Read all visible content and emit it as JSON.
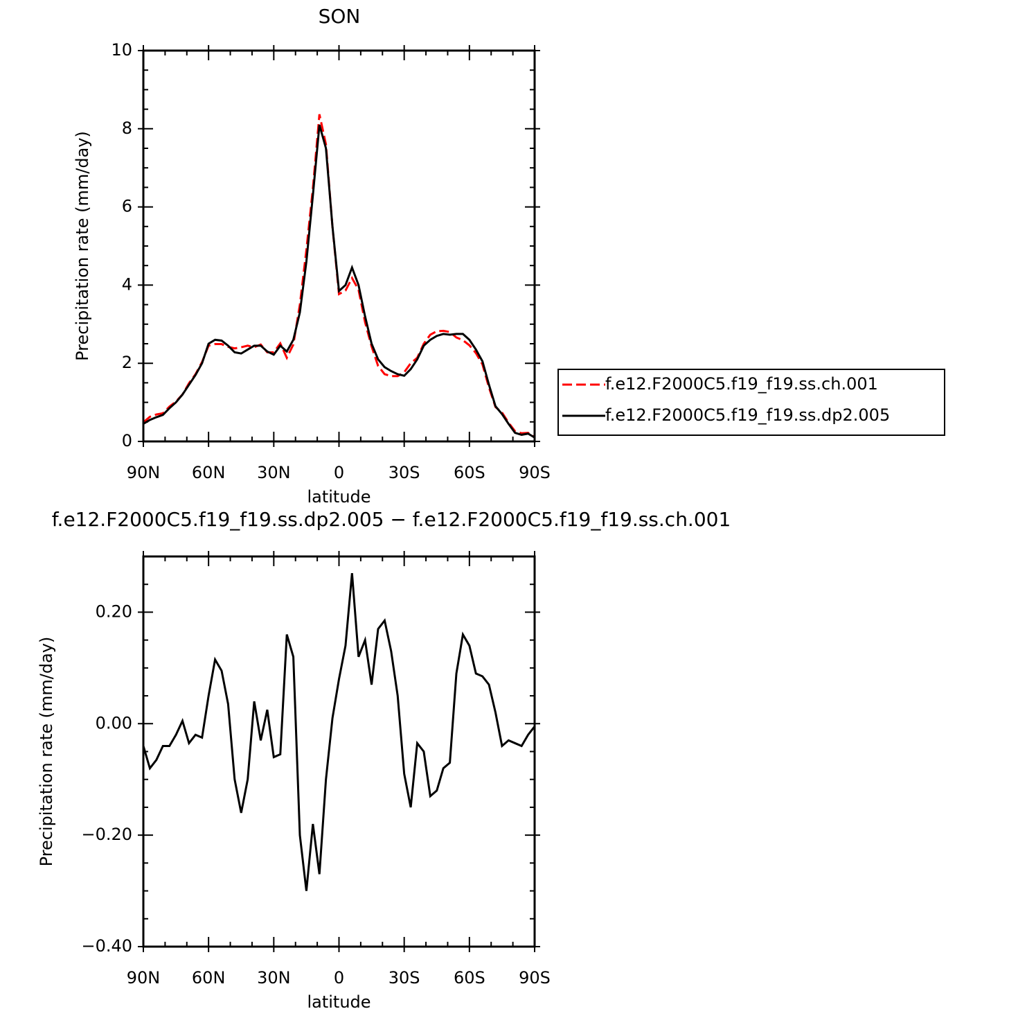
{
  "chart_data": [
    {
      "type": "line",
      "title": "SON",
      "xlabel": "latitude",
      "ylabel": "Precipitation rate (mm/day)",
      "x": [
        90,
        87,
        84,
        81,
        78,
        75,
        72,
        69,
        66,
        63,
        60,
        57,
        54,
        51,
        48,
        45,
        42,
        39,
        36,
        33,
        30,
        27,
        24,
        21,
        18,
        15,
        12,
        9,
        6,
        3,
        0,
        -3,
        -6,
        -9,
        -12,
        -15,
        -18,
        -21,
        -24,
        -27,
        -30,
        -33,
        -36,
        -39,
        -42,
        -45,
        -48,
        -51,
        -54,
        -57,
        -60,
        -63,
        -66,
        -69,
        -72,
        -75,
        -78,
        -81,
        -84,
        -87,
        -90
      ],
      "series": [
        {
          "name": "f.e12.F2000C5.f19_f19.ss.ch.001",
          "color": "#ff0000",
          "dash": true,
          "values": [
            0.49,
            0.63,
            0.69,
            0.72,
            0.89,
            1.02,
            1.2,
            1.49,
            1.72,
            2.03,
            2.45,
            2.49,
            2.49,
            2.42,
            2.38,
            2.41,
            2.45,
            2.41,
            2.48,
            2.28,
            2.28,
            2.51,
            2.14,
            2.48,
            3.5,
            4.9,
            6.48,
            8.37,
            7.6,
            5.49,
            3.77,
            3.86,
            4.18,
            3.88,
            3.05,
            2.43,
            1.93,
            1.72,
            1.67,
            1.67,
            1.77,
            2.0,
            2.14,
            2.5,
            2.73,
            2.82,
            2.83,
            2.8,
            2.66,
            2.59,
            2.46,
            2.26,
            1.97,
            1.38,
            0.88,
            0.74,
            0.48,
            0.26,
            0.21,
            0.22,
            0.11
          ]
        },
        {
          "name": "f.e12.F2000C5.f19_f19.ss.dp2.005",
          "color": "#000000",
          "dash": false,
          "values": [
            0.45,
            0.55,
            0.62,
            0.68,
            0.85,
            1.0,
            1.2,
            1.45,
            1.7,
            2.0,
            2.5,
            2.6,
            2.58,
            2.45,
            2.28,
            2.25,
            2.35,
            2.45,
            2.45,
            2.3,
            2.22,
            2.45,
            2.3,
            2.6,
            3.3,
            4.6,
            6.3,
            8.1,
            7.5,
            5.5,
            3.85,
            4.0,
            4.45,
            4.0,
            3.2,
            2.5,
            2.1,
            1.9,
            1.8,
            1.72,
            1.68,
            1.85,
            2.1,
            2.45,
            2.6,
            2.7,
            2.75,
            2.73,
            2.75,
            2.75,
            2.6,
            2.35,
            2.05,
            1.45,
            0.9,
            0.7,
            0.45,
            0.22,
            0.17,
            0.2,
            0.1
          ]
        }
      ],
      "xlim": [
        90,
        -90
      ],
      "xticks": [
        {
          "value": 90,
          "label": "90N"
        },
        {
          "value": 60,
          "label": "60N"
        },
        {
          "value": 30,
          "label": "30N"
        },
        0,
        {
          "value": -30,
          "label": "30S"
        },
        {
          "value": -60,
          "label": "60S"
        },
        {
          "value": -90,
          "label": "90S"
        }
      ],
      "xminorticks": [
        80,
        70,
        50,
        40,
        20,
        10,
        -10,
        -20,
        -40,
        -50,
        -70,
        -80
      ],
      "ylim": [
        0,
        10
      ],
      "yticks": [
        0,
        2,
        4,
        6,
        8,
        10
      ],
      "yminorticks": [
        0.5,
        1,
        1.5,
        2.5,
        3,
        3.5,
        4.5,
        5,
        5.5,
        6.5,
        7,
        7.5,
        8.5,
        9,
        9.5
      ],
      "legend": "outside-right"
    },
    {
      "type": "line",
      "title": "f.e12.F2000C5.f19_f19.ss.dp2.005 − f.e12.F2000C5.f19_f19.ss.ch.001",
      "xlabel": "latitude",
      "ylabel": "Precipitation rate (mm/day)",
      "x": [
        90,
        87,
        84,
        81,
        78,
        75,
        72,
        69,
        66,
        63,
        60,
        57,
        54,
        51,
        48,
        45,
        42,
        39,
        36,
        33,
        30,
        27,
        24,
        21,
        18,
        15,
        12,
        9,
        6,
        3,
        0,
        -3,
        -6,
        -9,
        -12,
        -15,
        -18,
        -21,
        -24,
        -27,
        -30,
        -33,
        -36,
        -39,
        -42,
        -45,
        -48,
        -51,
        -54,
        -57,
        -60,
        -63,
        -66,
        -69,
        -72,
        -75,
        -78,
        -81,
        -84,
        -87,
        -90
      ],
      "series": [
        {
          "color": "#000000",
          "dash": false,
          "values": [
            -0.04,
            -0.08,
            -0.065,
            -0.04,
            -0.04,
            -0.02,
            0.005,
            -0.035,
            -0.02,
            -0.025,
            0.05,
            0.115,
            0.095,
            0.035,
            -0.1,
            -0.16,
            -0.1,
            0.04,
            -0.03,
            0.025,
            -0.06,
            -0.055,
            0.16,
            0.12,
            -0.2,
            -0.3,
            -0.18,
            -0.27,
            -0.1,
            0.01,
            0.08,
            0.14,
            0.27,
            0.12,
            0.15,
            0.07,
            0.17,
            0.185,
            0.13,
            0.05,
            -0.09,
            -0.15,
            -0.035,
            -0.05,
            -0.13,
            -0.12,
            -0.08,
            -0.07,
            0.09,
            0.16,
            0.14,
            0.09,
            0.085,
            0.07,
            0.02,
            -0.04,
            -0.03,
            -0.035,
            -0.04,
            -0.02,
            -0.005
          ]
        }
      ],
      "xlim": [
        90,
        -90
      ],
      "xticks": [
        {
          "value": 90,
          "label": "90N"
        },
        {
          "value": 60,
          "label": "60N"
        },
        {
          "value": 30,
          "label": "30N"
        },
        0,
        {
          "value": -30,
          "label": "30S"
        },
        {
          "value": -60,
          "label": "60S"
        },
        {
          "value": -90,
          "label": "90S"
        }
      ],
      "xminorticks": [
        80,
        70,
        50,
        40,
        20,
        10,
        -10,
        -20,
        -40,
        -50,
        -70,
        -80
      ],
      "ylim": [
        -0.4,
        0.3
      ],
      "yticks": [
        {
          "value": -0.4,
          "label": "−0.40"
        },
        {
          "value": -0.2,
          "label": "−0.20"
        },
        {
          "value": 0,
          "label": "0.00"
        },
        {
          "value": 0.2,
          "label": "0.20"
        }
      ],
      "yminorticks": [
        -0.35,
        -0.3,
        -0.25,
        -0.15,
        -0.1,
        -0.05,
        0.05,
        0.1,
        0.15,
        0.25
      ]
    }
  ]
}
